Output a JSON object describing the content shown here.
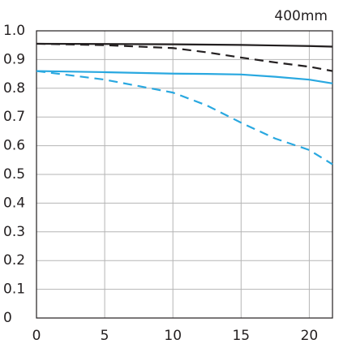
{
  "chart_data": {
    "type": "line",
    "title": "400mm",
    "x": [
      0,
      5,
      10,
      12.5,
      15,
      17.5,
      20,
      21.7
    ],
    "series": [
      {
        "color": "#231f20",
        "linestyle": "solid",
        "values": [
          0.955,
          0.954,
          0.953,
          0.952,
          0.951,
          0.949,
          0.947,
          0.945
        ]
      },
      {
        "color": "#231f20",
        "linestyle": "dashed",
        "values": [
          0.955,
          0.95,
          0.94,
          0.925,
          0.907,
          0.89,
          0.875,
          0.86
        ]
      },
      {
        "color": "#29a8e0",
        "linestyle": "solid",
        "values": [
          0.86,
          0.856,
          0.851,
          0.85,
          0.848,
          0.84,
          0.83,
          0.817
        ]
      },
      {
        "color": "#29a8e0",
        "linestyle": "dashed",
        "values": [
          0.86,
          0.83,
          0.785,
          0.74,
          0.68,
          0.625,
          0.585,
          0.535
        ]
      }
    ],
    "xlim": [
      0,
      21.7
    ],
    "xticks": [
      0,
      5,
      10,
      15,
      20
    ],
    "ylim": [
      0,
      1
    ],
    "yticks": [
      0,
      0.1,
      0.2,
      0.3,
      0.4,
      0.5,
      0.6,
      0.7,
      0.8,
      0.9,
      {
        "value": 1,
        "label": "1.0"
      }
    ],
    "grid": true
  }
}
